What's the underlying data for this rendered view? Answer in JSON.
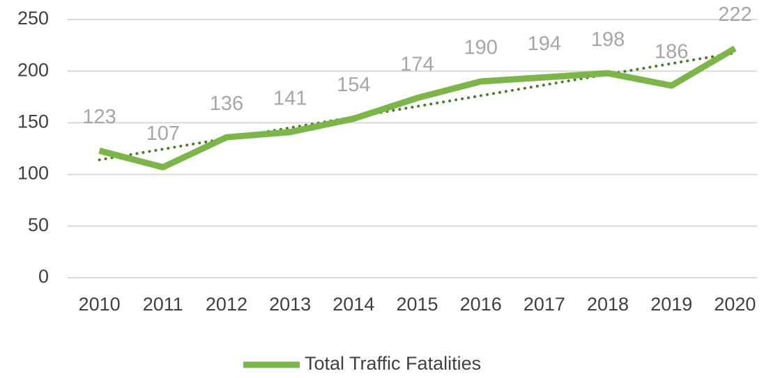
{
  "chart_data": {
    "type": "line",
    "categories": [
      "2010",
      "2011",
      "2012",
      "2013",
      "2014",
      "2015",
      "2016",
      "2017",
      "2018",
      "2019",
      "2020"
    ],
    "series": [
      {
        "name": "Total Traffic Fatalities",
        "color": "#7cb649",
        "values": [
          123,
          107,
          136,
          141,
          154,
          174,
          190,
          194,
          198,
          186,
          222
        ]
      }
    ],
    "trendline": {
      "type": "linear",
      "color": "#4e7a2c"
    },
    "ylim": [
      0,
      250
    ],
    "yticks": [
      0,
      50,
      100,
      150,
      200,
      250
    ],
    "grid": true,
    "data_labels": true,
    "legend": "bottom"
  }
}
